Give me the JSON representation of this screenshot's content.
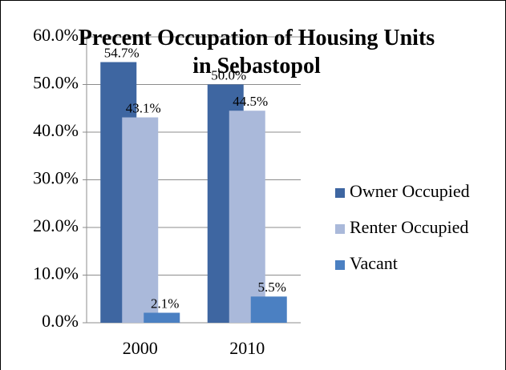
{
  "chart_data": {
    "type": "bar",
    "title": "Precent Occupation of Housing Units in Sebastopol",
    "categories": [
      "2000",
      "2010"
    ],
    "series": [
      {
        "name": "Owner Occupied",
        "color": "#3e66a1",
        "values": [
          54.7,
          50.0
        ],
        "value_labels": [
          "54.7%",
          "50.0%"
        ]
      },
      {
        "name": "Renter Occupied",
        "color": "#aab9da",
        "values": [
          43.1,
          44.5
        ],
        "value_labels": [
          "43.1%",
          "44.5%"
        ]
      },
      {
        "name": "Vacant",
        "color": "#4b80c2",
        "values": [
          2.1,
          5.5
        ],
        "value_labels": [
          "2.1%",
          "5.5%"
        ]
      }
    ],
    "ylim": [
      0,
      60
    ],
    "yticks": [
      {
        "value": 0,
        "label": "0.0%"
      },
      {
        "value": 10,
        "label": "10.0%"
      },
      {
        "value": 20,
        "label": "20.0%"
      },
      {
        "value": 30,
        "label": "30.0%"
      },
      {
        "value": 40,
        "label": "40.0%"
      },
      {
        "value": 50,
        "label": "50.0%"
      },
      {
        "value": 60,
        "label": "60.0%"
      }
    ],
    "grid": true,
    "legend": "right"
  }
}
